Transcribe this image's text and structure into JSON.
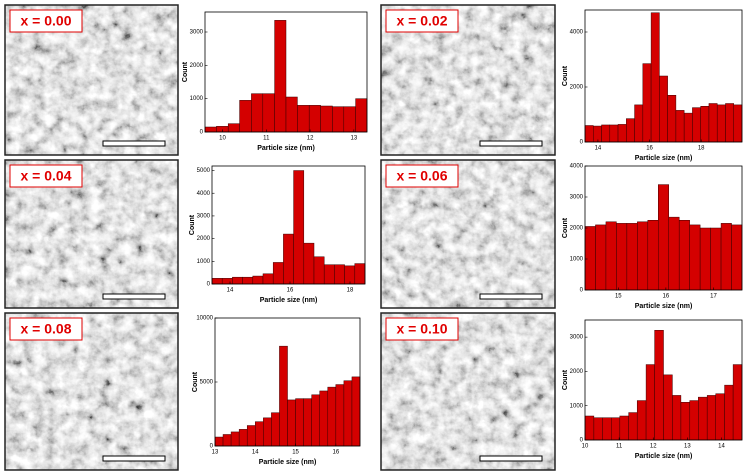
{
  "images": [
    {
      "label": "x = 0.00"
    },
    {
      "label": "x = 0.02"
    },
    {
      "label": "x = 0.04"
    },
    {
      "label": "x = 0.06"
    },
    {
      "label": "x = 0.08"
    },
    {
      "label": "x = 0.10"
    }
  ],
  "chart_data": [
    {
      "type": "histogram",
      "xlabel": "Particle size  (nm)",
      "ylabel": "Count",
      "color": "#d40000",
      "bins": [
        9.6,
        9.86,
        10.13,
        10.39,
        10.66,
        10.92,
        11.19,
        11.45,
        11.71,
        11.98,
        12.24,
        12.51,
        12.77,
        13.04,
        13.3
      ],
      "counts": [
        150,
        170,
        250,
        950,
        1150,
        1150,
        3350,
        1050,
        800,
        800,
        780,
        760,
        760,
        1000
      ],
      "xlim": [
        9.6,
        13.3
      ],
      "xticks": [
        10,
        11,
        12,
        13
      ],
      "ylim": [
        0,
        3600
      ],
      "yticks": [
        0,
        1000,
        2000,
        3000
      ]
    },
    {
      "type": "histogram",
      "xlabel": "Particle size  (nm)",
      "ylabel": "Count",
      "color": "#d40000",
      "bins": [
        13.5,
        13.82,
        14.14,
        14.46,
        14.78,
        15.1,
        15.42,
        15.74,
        16.06,
        16.38,
        16.7,
        17.02,
        17.34,
        17.66,
        17.98,
        18.3,
        18.62,
        18.94,
        19.26,
        19.58
      ],
      "counts": [
        600,
        580,
        620,
        620,
        640,
        850,
        1350,
        2850,
        4700,
        2400,
        1700,
        1150,
        1050,
        1250,
        1300,
        1400,
        1350,
        1400,
        1350
      ],
      "xlim": [
        13.5,
        19.58
      ],
      "xticks": [
        14,
        16,
        18
      ],
      "ylim": [
        0,
        4800
      ],
      "yticks": [
        0,
        2000,
        4000
      ]
    },
    {
      "type": "histogram",
      "xlabel": "Particle size  (nm)",
      "ylabel": "Count",
      "color": "#d40000",
      "bins": [
        13.4,
        13.74,
        14.08,
        14.42,
        14.76,
        15.1,
        15.44,
        15.78,
        16.12,
        16.46,
        16.8,
        17.14,
        17.48,
        17.82,
        18.16,
        18.5
      ],
      "counts": [
        250,
        250,
        300,
        300,
        350,
        450,
        950,
        2200,
        5000,
        1800,
        1200,
        850,
        850,
        800,
        900
      ],
      "xlim": [
        13.4,
        18.5
      ],
      "xticks": [
        14,
        16,
        18
      ],
      "ylim": [
        0,
        5200
      ],
      "yticks": [
        0,
        1000,
        2000,
        3000,
        4000,
        5000
      ]
    },
    {
      "type": "histogram",
      "xlabel": "Particle size  (nm)",
      "ylabel": "Count",
      "color": "#d40000",
      "bins": [
        14.3,
        14.52,
        14.74,
        14.96,
        15.18,
        15.4,
        15.62,
        15.84,
        16.06,
        16.28,
        16.5,
        16.72,
        16.94,
        17.16,
        17.38,
        17.6
      ],
      "counts": [
        2050,
        2100,
        2200,
        2150,
        2150,
        2200,
        2250,
        3400,
        2350,
        2250,
        2100,
        2000,
        2000,
        2150,
        2100
      ],
      "xlim": [
        14.3,
        17.6
      ],
      "xticks": [
        15,
        16,
        17
      ],
      "ylim": [
        0,
        4000
      ],
      "yticks": [
        0,
        1000,
        2000,
        3000,
        4000
      ]
    },
    {
      "type": "histogram",
      "xlabel": "Particle size  (nm)",
      "ylabel": "Count",
      "color": "#d40000",
      "bins": [
        13,
        13.2,
        13.4,
        13.6,
        13.8,
        14,
        14.2,
        14.4,
        14.6,
        14.8,
        15,
        15.2,
        15.4,
        15.6,
        15.8,
        16,
        16.2,
        16.4,
        16.6
      ],
      "counts": [
        700,
        900,
        1100,
        1300,
        1600,
        1900,
        2200,
        2600,
        7800,
        3600,
        3700,
        3700,
        4000,
        4300,
        4600,
        4800,
        5100,
        5400
      ],
      "xlim": [
        13,
        16.6
      ],
      "xticks": [
        13,
        14,
        15,
        16
      ],
      "ylim": [
        0,
        10000
      ],
      "yticks": [
        0,
        5000,
        10000
      ]
    },
    {
      "type": "histogram",
      "xlabel": "Particle size  (nm)",
      "ylabel": "Count",
      "color": "#d40000",
      "bins": [
        10,
        10.26,
        10.51,
        10.77,
        11.02,
        11.28,
        11.53,
        11.79,
        12.04,
        12.3,
        12.56,
        12.81,
        13.07,
        13.32,
        13.58,
        13.83,
        14.09,
        14.34,
        14.6
      ],
      "counts": [
        700,
        650,
        650,
        650,
        700,
        800,
        1150,
        2200,
        3200,
        1900,
        1300,
        1100,
        1150,
        1250,
        1300,
        1350,
        1600,
        2200
      ],
      "xlim": [
        10,
        14.6
      ],
      "xticks": [
        10,
        11,
        12,
        13,
        14
      ],
      "ylim": [
        0,
        3500
      ],
      "yticks": [
        0,
        1000,
        2000,
        3000
      ]
    }
  ]
}
